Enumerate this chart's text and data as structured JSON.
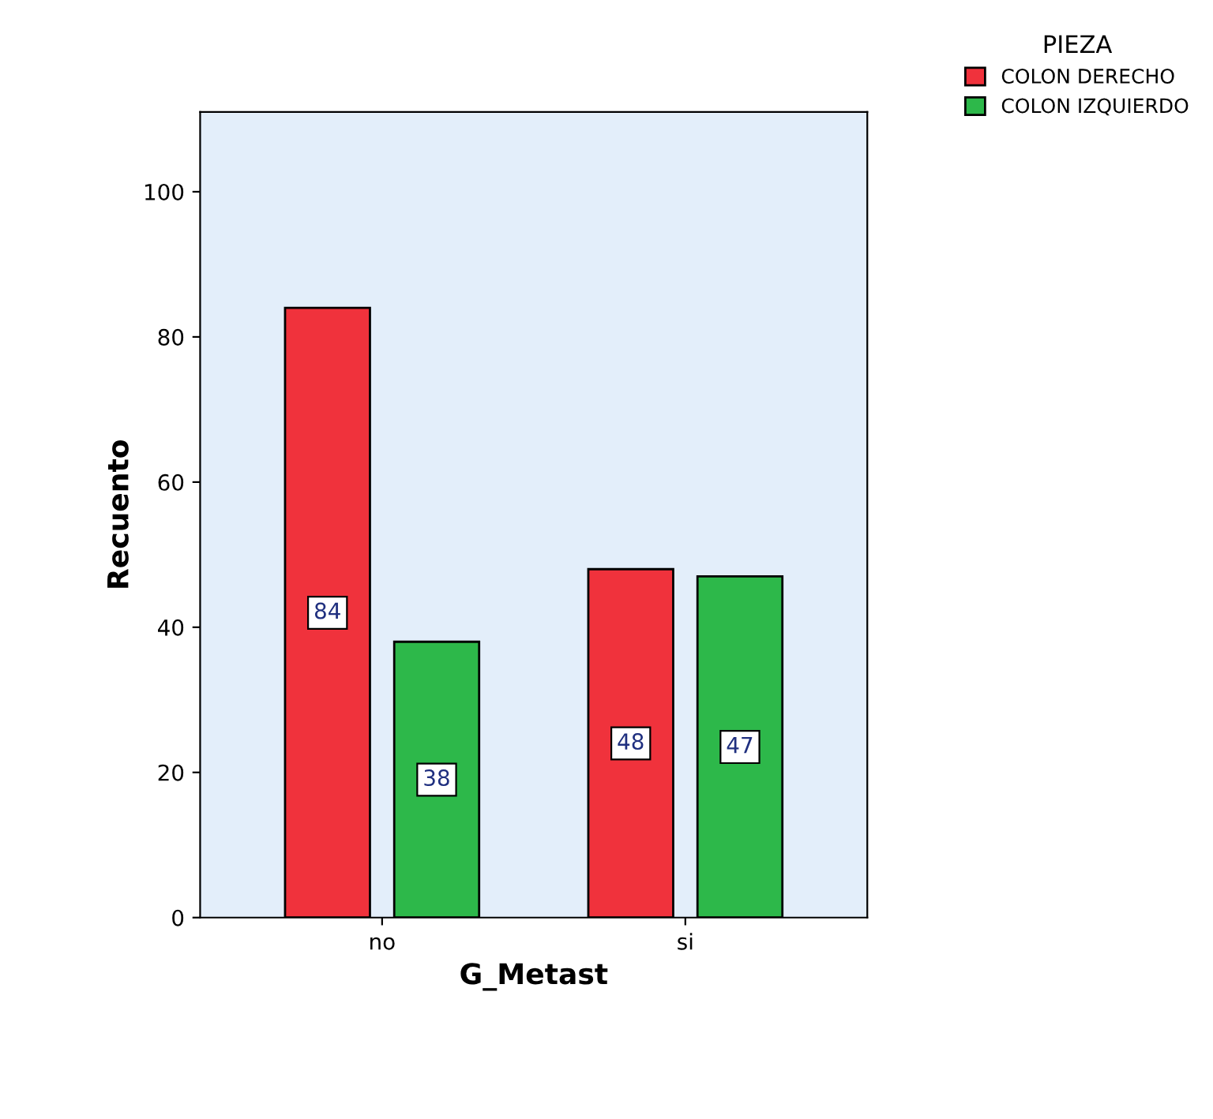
{
  "chart_data": {
    "type": "bar",
    "xlabel": "G_Metast",
    "ylabel": "Recuento",
    "legend_title": "PIEZA",
    "categories": [
      "no",
      "si"
    ],
    "series": [
      {
        "name": "COLON DERECHO",
        "color": "#f0323c",
        "values": [
          84,
          48
        ]
      },
      {
        "name": "COLON IZQUIERDO",
        "color": "#2db84a",
        "values": [
          38,
          47
        ]
      }
    ],
    "ylim": [
      0,
      111
    ],
    "yticks": [
      0,
      20,
      40,
      60,
      80,
      100
    ],
    "grid": false,
    "legend": "top right",
    "data_labels": true
  }
}
